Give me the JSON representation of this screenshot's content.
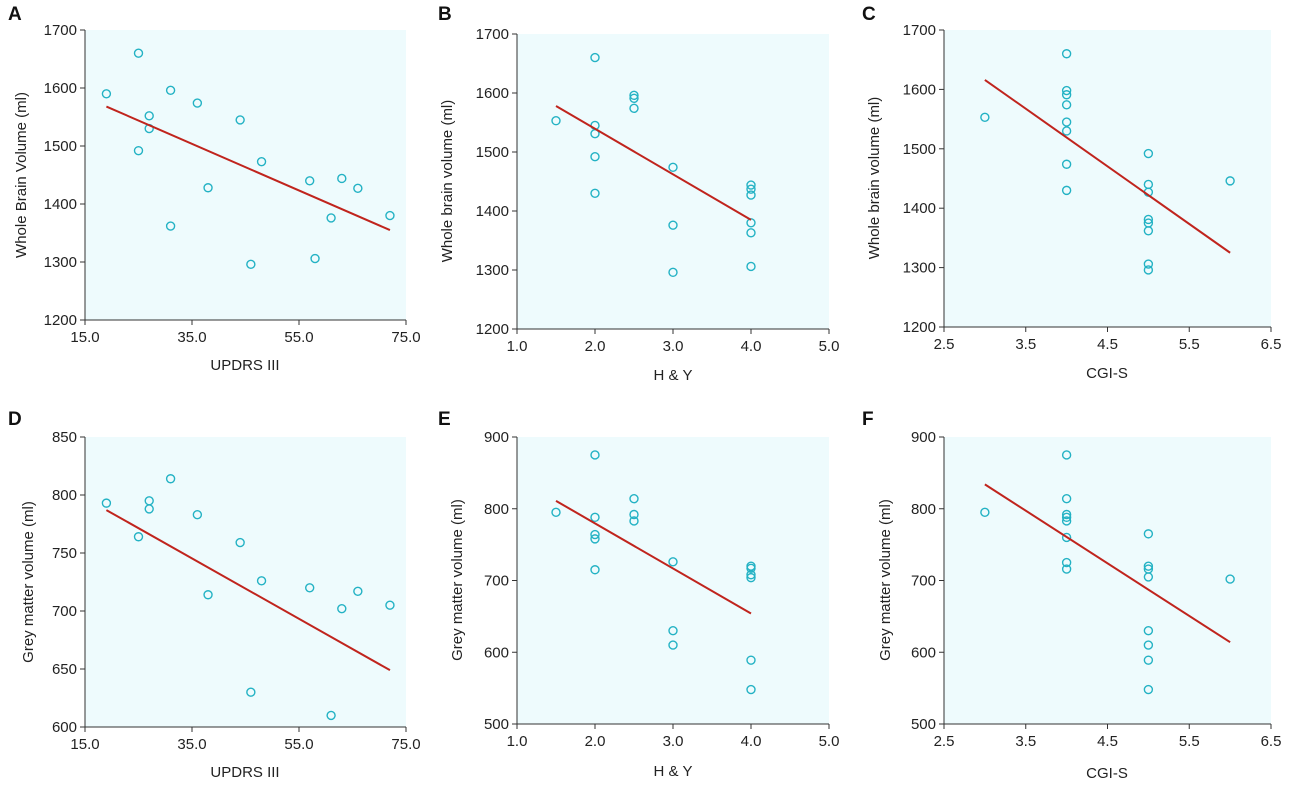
{
  "figure": {
    "colors": {
      "plot_background": "#eefbfd",
      "marker": "#23b2c4",
      "fit_line": "#c0241d",
      "axis": "#333333"
    }
  },
  "chart_data": [
    {
      "type": "scatter",
      "panel": "A",
      "xlabel": "UPDRS III",
      "ylabel": "Whole Brain Volume (ml)",
      "xlim": [
        15,
        75
      ],
      "ylim": [
        1200,
        1700
      ],
      "xticks": [
        15,
        35,
        55,
        75
      ],
      "xtick_labels": [
        "15.0",
        "35.0",
        "55.0",
        "75.0"
      ],
      "yticks": [
        1200,
        1300,
        1400,
        1500,
        1600,
        1700
      ],
      "ytick_labels": [
        "1200",
        "1300",
        "1400",
        "1500",
        "1600",
        "1700"
      ],
      "points": [
        [
          19,
          1590
        ],
        [
          25,
          1660
        ],
        [
          25,
          1492
        ],
        [
          27,
          1552
        ],
        [
          27,
          1530
        ],
        [
          31,
          1596
        ],
        [
          31,
          1362
        ],
        [
          36,
          1574
        ],
        [
          38,
          1428
        ],
        [
          44,
          1545
        ],
        [
          46,
          1296
        ],
        [
          48,
          1473
        ],
        [
          57,
          1440
        ],
        [
          58,
          1306
        ],
        [
          61,
          1376
        ],
        [
          63,
          1444
        ],
        [
          66,
          1427
        ],
        [
          72,
          1380
        ]
      ],
      "fit_line": [
        [
          19,
          1568
        ],
        [
          72,
          1355
        ]
      ]
    },
    {
      "type": "scatter",
      "panel": "B",
      "xlabel": "H & Y",
      "ylabel": "Whole brain volume (ml)",
      "xlim": [
        1.0,
        5.0
      ],
      "ylim": [
        1200,
        1700
      ],
      "xticks": [
        1,
        2,
        3,
        4,
        5
      ],
      "xtick_labels": [
        "1.0",
        "2.0",
        "3.0",
        "4.0",
        "5.0"
      ],
      "yticks": [
        1200,
        1300,
        1400,
        1500,
        1600,
        1700
      ],
      "ytick_labels": [
        "1200",
        "1300",
        "1400",
        "1500",
        "1600",
        "1700"
      ],
      "points": [
        [
          1.5,
          1553
        ],
        [
          2,
          1660
        ],
        [
          2,
          1545
        ],
        [
          2,
          1531
        ],
        [
          2,
          1492
        ],
        [
          2,
          1430
        ],
        [
          2.5,
          1596
        ],
        [
          2.5,
          1591
        ],
        [
          2.5,
          1574
        ],
        [
          3,
          1474
        ],
        [
          3,
          1376
        ],
        [
          3,
          1296
        ],
        [
          4,
          1444
        ],
        [
          4,
          1437
        ],
        [
          4,
          1427
        ],
        [
          4,
          1380
        ],
        [
          4,
          1363
        ],
        [
          4,
          1306
        ]
      ],
      "fit_line": [
        [
          1.5,
          1578
        ],
        [
          4,
          1385
        ]
      ]
    },
    {
      "type": "scatter",
      "panel": "C",
      "xlabel": "CGI-S",
      "ylabel": "Whole brain volume (ml)",
      "xlim": [
        2.5,
        6.5
      ],
      "ylim": [
        1200,
        1700
      ],
      "xticks": [
        2.5,
        3.5,
        4.5,
        5.5,
        6.5
      ],
      "xtick_labels": [
        "2.5",
        "3.5",
        "4.5",
        "5.5",
        "6.5"
      ],
      "yticks": [
        1200,
        1300,
        1400,
        1500,
        1600,
        1700
      ],
      "ytick_labels": [
        "1200",
        "1300",
        "1400",
        "1500",
        "1600",
        "1700"
      ],
      "points": [
        [
          3,
          1553
        ],
        [
          4,
          1660
        ],
        [
          4,
          1598
        ],
        [
          4,
          1591
        ],
        [
          4,
          1574
        ],
        [
          4,
          1545
        ],
        [
          4,
          1530
        ],
        [
          4,
          1474
        ],
        [
          4,
          1430
        ],
        [
          5,
          1492
        ],
        [
          5,
          1440
        ],
        [
          5,
          1427
        ],
        [
          5,
          1381
        ],
        [
          5,
          1375
        ],
        [
          5,
          1362
        ],
        [
          5,
          1306
        ],
        [
          5,
          1296
        ],
        [
          6,
          1446
        ]
      ],
      "fit_line": [
        [
          3,
          1616
        ],
        [
          6,
          1325
        ]
      ]
    },
    {
      "type": "scatter",
      "panel": "D",
      "xlabel": "UPDRS III",
      "ylabel": "Grey matter  volume (ml)",
      "xlim": [
        15,
        75
      ],
      "ylim": [
        600,
        850
      ],
      "xticks": [
        15,
        35,
        55,
        75
      ],
      "xtick_labels": [
        "15.0",
        "35.0",
        "55.0",
        "75.0"
      ],
      "yticks": [
        600,
        650,
        700,
        750,
        800,
        850
      ],
      "ytick_labels": [
        "600",
        "650",
        "700",
        "750",
        "800",
        "850"
      ],
      "points": [
        [
          19,
          793
        ],
        [
          25,
          764
        ],
        [
          27,
          795
        ],
        [
          27,
          788
        ],
        [
          31,
          814
        ],
        [
          36,
          783
        ],
        [
          38,
          714
        ],
        [
          44,
          759
        ],
        [
          46,
          630
        ],
        [
          48,
          726
        ],
        [
          57,
          720
        ],
        [
          61,
          610
        ],
        [
          63,
          702
        ],
        [
          66,
          717
        ],
        [
          72,
          705
        ]
      ],
      "fit_line": [
        [
          19,
          787
        ],
        [
          72,
          649
        ]
      ]
    },
    {
      "type": "scatter",
      "panel": "E",
      "xlabel": "H & Y",
      "ylabel": "Grey matter volume (ml)",
      "xlim": [
        1.0,
        5.0
      ],
      "ylim": [
        500,
        900
      ],
      "xticks": [
        1,
        2,
        3,
        4,
        5
      ],
      "xtick_labels": [
        "1.0",
        "2.0",
        "3.0",
        "4.0",
        "5.0"
      ],
      "yticks": [
        500,
        600,
        700,
        800,
        900
      ],
      "ytick_labels": [
        "500",
        "600",
        "700",
        "800",
        "900"
      ],
      "points": [
        [
          1.5,
          795
        ],
        [
          2,
          875
        ],
        [
          2,
          788
        ],
        [
          2,
          764
        ],
        [
          2,
          758
        ],
        [
          2,
          715
        ],
        [
          2.5,
          814
        ],
        [
          2.5,
          792
        ],
        [
          2.5,
          783
        ],
        [
          3,
          726
        ],
        [
          3,
          630
        ],
        [
          3,
          610
        ],
        [
          4,
          720
        ],
        [
          4,
          717
        ],
        [
          4,
          708
        ],
        [
          4,
          704
        ],
        [
          4,
          589
        ],
        [
          4,
          548
        ]
      ],
      "fit_line": [
        [
          1.5,
          811
        ],
        [
          4,
          654
        ]
      ]
    },
    {
      "type": "scatter",
      "panel": "F",
      "xlabel": "CGI-S",
      "ylabel": "Grey matter volume (ml)",
      "xlim": [
        2.5,
        6.5
      ],
      "ylim": [
        500,
        900
      ],
      "xticks": [
        2.5,
        3.5,
        4.5,
        5.5,
        6.5
      ],
      "xtick_labels": [
        "2.5",
        "3.5",
        "4.5",
        "5.5",
        "6.5"
      ],
      "yticks": [
        500,
        600,
        700,
        800,
        900
      ],
      "ytick_labels": [
        "500",
        "600",
        "700",
        "800",
        "900"
      ],
      "points": [
        [
          3,
          795
        ],
        [
          4,
          875
        ],
        [
          4,
          814
        ],
        [
          4,
          792
        ],
        [
          4,
          788
        ],
        [
          4,
          783
        ],
        [
          4,
          760
        ],
        [
          4,
          725
        ],
        [
          4,
          716
        ],
        [
          5,
          765
        ],
        [
          5,
          720
        ],
        [
          5,
          716
        ],
        [
          5,
          705
        ],
        [
          5,
          630
        ],
        [
          5,
          610
        ],
        [
          5,
          589
        ],
        [
          5,
          548
        ],
        [
          6,
          702
        ]
      ],
      "fit_line": [
        [
          3,
          834
        ],
        [
          6,
          614
        ]
      ]
    }
  ]
}
